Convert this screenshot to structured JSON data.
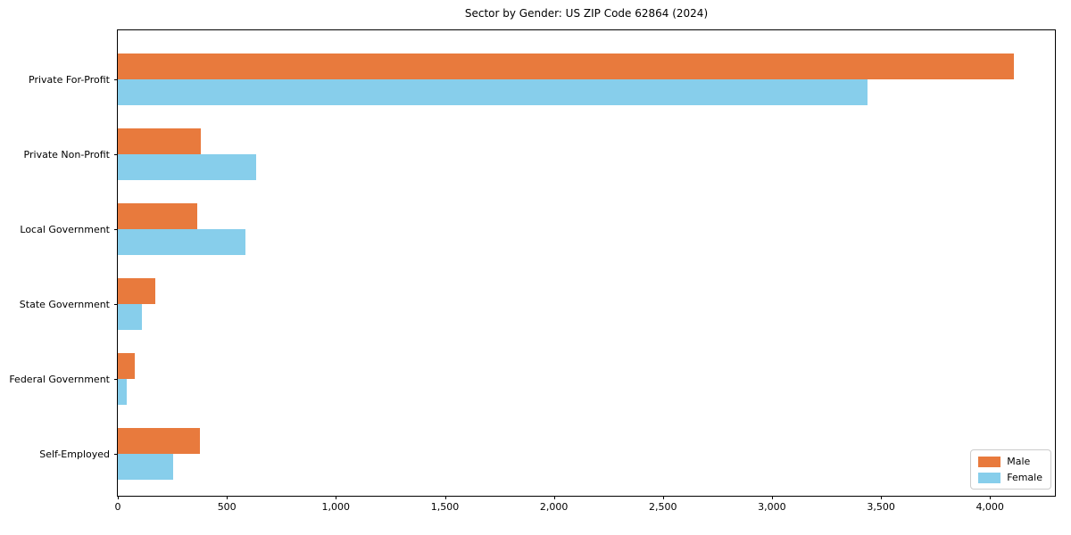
{
  "title": "Sector by Gender: US ZIP Code 62864 (2024)",
  "chart_data": {
    "type": "bar",
    "orientation": "horizontal",
    "title": "Sector by Gender: US ZIP Code 62864 (2024)",
    "categories": [
      "Private For-Profit",
      "Private Non-Profit",
      "Local Government",
      "State Government",
      "Federal Government",
      "Self-Employed"
    ],
    "series": [
      {
        "name": "Male",
        "color": "#e87a3d",
        "values": [
          4110,
          380,
          364,
          170,
          78,
          375
        ]
      },
      {
        "name": "Female",
        "color": "#87ceeb",
        "values": [
          3440,
          634,
          585,
          111,
          40,
          252
        ]
      }
    ],
    "xlabel": "",
    "ylabel": "",
    "xlim": [
      0,
      4306
    ],
    "xticks": [
      0,
      500,
      1000,
      1500,
      2000,
      2500,
      3000,
      3500,
      4000
    ],
    "xtick_labels": [
      "0",
      "500",
      "1,000",
      "1,500",
      "2,000",
      "2,500",
      "3,000",
      "3,500",
      "4,000"
    ],
    "grid": false,
    "legend": {
      "position": "lower right",
      "items": [
        "Male",
        "Female"
      ]
    }
  }
}
